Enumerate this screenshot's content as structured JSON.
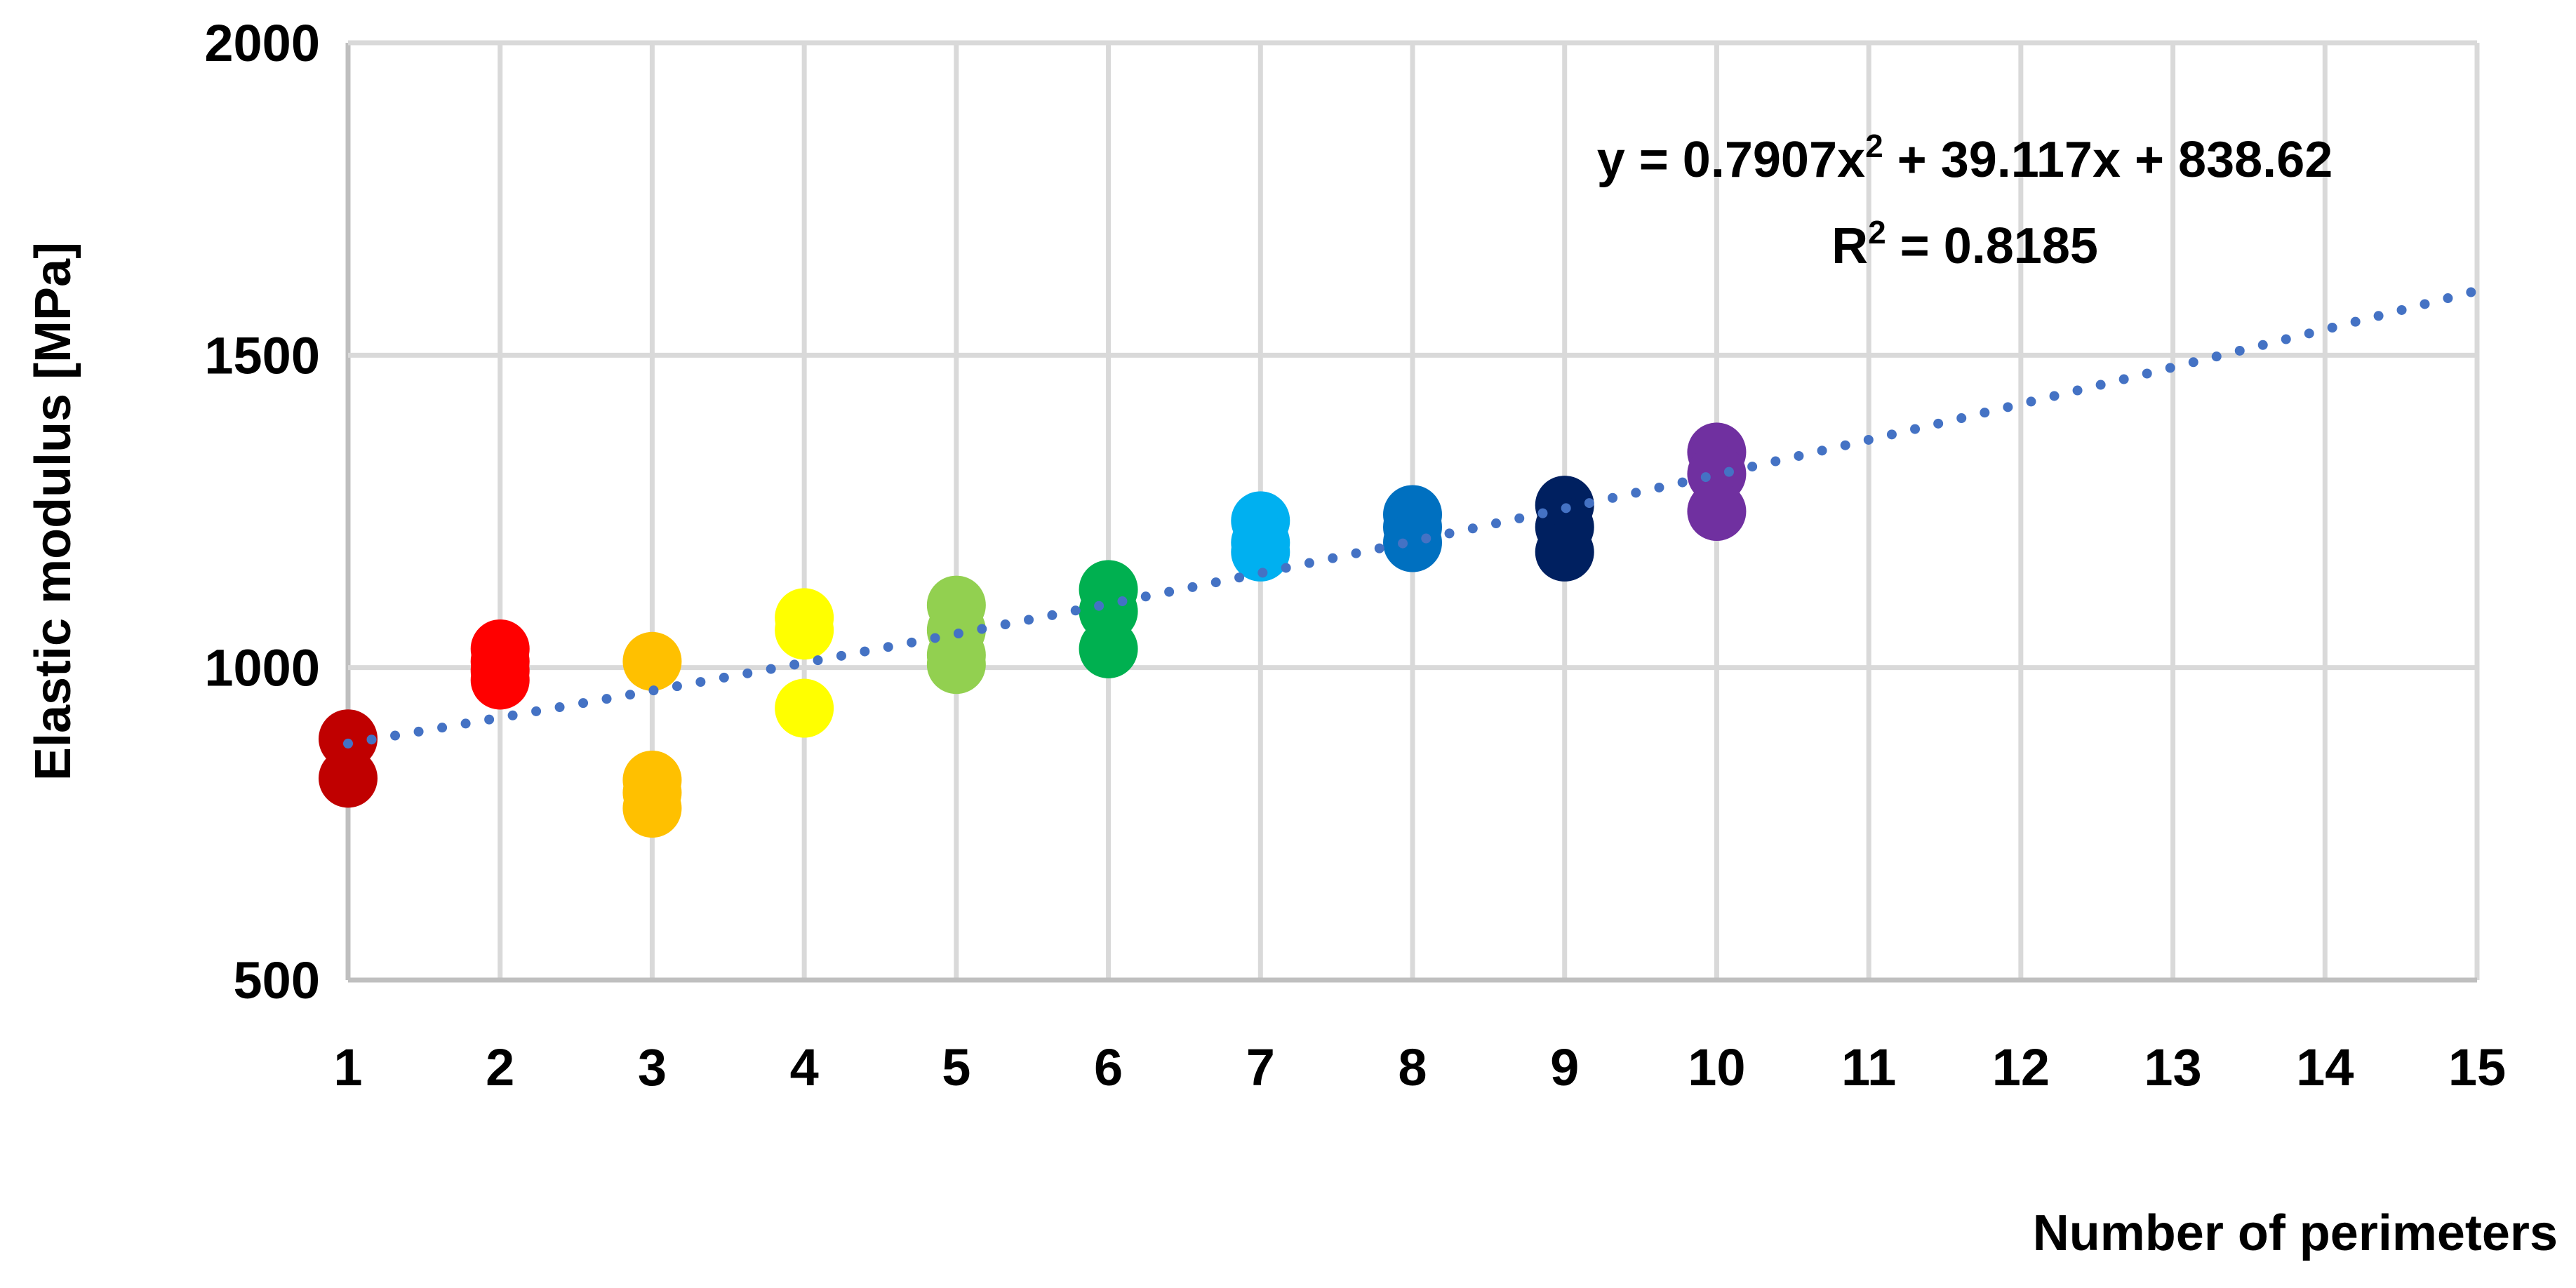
{
  "chart_data": {
    "type": "scatter",
    "xlabel": "Number of perimeters",
    "ylabel": "Elastic modulus [MPa]",
    "xlim": [
      1,
      15
    ],
    "ylim": [
      500,
      2000
    ],
    "xticks": [
      1,
      2,
      3,
      4,
      5,
      6,
      7,
      8,
      9,
      10,
      11,
      12,
      13,
      14,
      15
    ],
    "yticks": [
      500,
      1000,
      1500,
      2000
    ],
    "grid": true,
    "legend": "none",
    "series": [
      {
        "x": 1,
        "values": [
          886,
          823
        ],
        "color": "#C00000"
      },
      {
        "x": 2,
        "values": [
          1030,
          1010,
          995,
          980
        ],
        "color": "#FF0000"
      },
      {
        "x": 3,
        "values": [
          1010,
          820,
          800,
          775
        ],
        "color": "#FFC000"
      },
      {
        "x": 4,
        "values": [
          1080,
          1060,
          935
        ],
        "color": "#FFFF00"
      },
      {
        "x": 5,
        "values": [
          1100,
          1060,
          1020,
          1005
        ],
        "color": "#92D050"
      },
      {
        "x": 6,
        "values": [
          1125,
          1090,
          1030
        ],
        "color": "#00B050"
      },
      {
        "x": 7,
        "values": [
          1235,
          1200,
          1185
        ],
        "color": "#00B0F0"
      },
      {
        "x": 8,
        "values": [
          1245,
          1225,
          1200
        ],
        "color": "#0070C0"
      },
      {
        "x": 9,
        "values": [
          1260,
          1225,
          1185
        ],
        "color": "#002060"
      },
      {
        "x": 10,
        "values": [
          1345,
          1310,
          1250
        ],
        "color": "#7030A0"
      }
    ],
    "trendline": {
      "type": "polynomial",
      "coefficients": [
        0.7907,
        39.117,
        838.62
      ],
      "color": "#4472C4",
      "style": "dotted",
      "equation_prefix": "y = 0.7907x",
      "equation_sup": "2",
      "equation_suffix": " + 39.117x + 838.62",
      "r2_prefix": "R",
      "r2_sup": "2",
      "r2_suffix": " = 0.8185"
    }
  }
}
